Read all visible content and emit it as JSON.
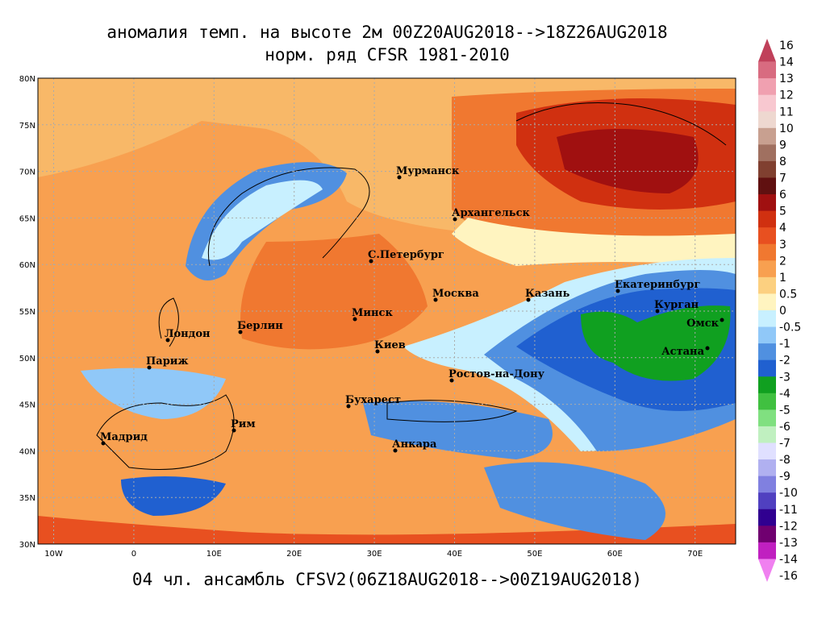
{
  "header": {
    "title": "аномалия темп. на высоте 2м 00Z20AUG2018-->18Z26AUG2018",
    "subtitle": "норм. ряд CFSR 1981-2010"
  },
  "footer": "04 чл. ансамбль CFSV2(06Z18AUG2018-->00Z19AUG2018)",
  "map": {
    "lat_labels": [
      "80N",
      "75N",
      "70N",
      "65N",
      "60N",
      "55N",
      "50N",
      "45N",
      "40N",
      "35N",
      "30N"
    ],
    "lon_labels": [
      "10W",
      "0",
      "10E",
      "20E",
      "30E",
      "40E",
      "50E",
      "60E",
      "70E"
    ],
    "cities": [
      "Мурманск",
      "Архангельск",
      "С.Петербург",
      "Москва",
      "Казань",
      "Екатеринбург",
      "Курган",
      "Омск",
      "Астана",
      "Минск",
      "Берлин",
      "Лондон",
      "Париж",
      "Киев",
      "Ростов-на-Дону",
      "Бухарест",
      "Рим",
      "Мадрид",
      "Анкара"
    ]
  },
  "colorbar": {
    "labels": [
      16,
      14,
      13,
      12,
      11,
      10,
      9,
      8,
      7,
      6,
      5,
      4,
      3,
      2,
      1,
      0.5,
      0,
      -0.5,
      -1,
      -2,
      -3,
      -4,
      -5,
      -6,
      -7,
      -8,
      -9,
      -10,
      -11,
      -12,
      -13,
      -14,
      -16
    ],
    "colors": [
      "#c0405a",
      "#d86b80",
      "#f0a0b0",
      "#f8c8d0",
      "#eed8d0",
      "#c8a090",
      "#a07060",
      "#804030",
      "#601010",
      "#a01010",
      "#d03010",
      "#e85020",
      "#f07830",
      "#f8a050",
      "#fcd080",
      "#fff4c0",
      "#c8f0ff",
      "#90c8f8",
      "#5090e0",
      "#2060d0",
      "#10a020",
      "#40c040",
      "#80e080",
      "#c0f0c0",
      "#e0e0ff",
      "#b0b0f0",
      "#8080e0",
      "#5040c0",
      "#300090",
      "#700070",
      "#c020c0",
      "#f080f0"
    ]
  }
}
